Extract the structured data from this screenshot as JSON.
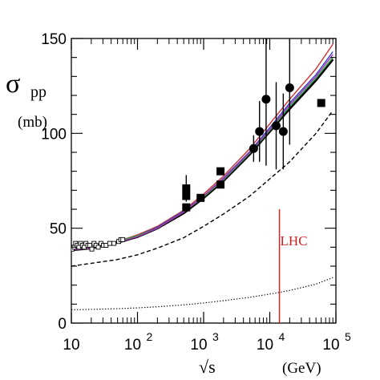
{
  "chart_data": {
    "type": "line",
    "title": "",
    "ylabel": {
      "symbol": "σ",
      "subscript": "pp",
      "unit": "(mb)"
    },
    "xlabel": {
      "symbol": "√s",
      "unit": "(GeV)"
    },
    "xscale": "log",
    "xlim": [
      10,
      100000
    ],
    "ylim": [
      0,
      150
    ],
    "x_ticks": [
      {
        "value": 10,
        "base": "10",
        "exp": ""
      },
      {
        "value": 100,
        "base": "10",
        "exp": "2"
      },
      {
        "value": 1000,
        "base": "10",
        "exp": "3"
      },
      {
        "value": 10000,
        "base": "10",
        "exp": "4"
      },
      {
        "value": 100000,
        "base": "10",
        "exp": "5"
      }
    ],
    "y_ticks": [
      0,
      50,
      100,
      150
    ],
    "grid": false,
    "annotations": [
      {
        "text": "LHC",
        "x": 14000,
        "y_from": 0,
        "y_to": 60,
        "color": "#cc2222"
      }
    ],
    "series": [
      {
        "style": "thick-solid",
        "color": "#000000",
        "x": [
          10,
          20,
          50,
          100,
          200,
          500,
          1000,
          2000,
          5000,
          10000,
          20000,
          50000,
          90000
        ],
        "y": [
          38.5,
          39.5,
          42.5,
          45.5,
          50,
          58,
          66,
          75,
          89,
          101,
          113,
          128,
          139
        ]
      },
      {
        "style": "solid",
        "color": "#cc3333",
        "x": [
          10,
          20,
          50,
          100,
          200,
          500,
          1000,
          2000,
          5000,
          10000,
          20000,
          50000,
          90000
        ],
        "y": [
          38.5,
          39.5,
          43,
          46.5,
          51,
          59.5,
          68,
          77.5,
          92,
          105,
          118,
          134,
          147
        ]
      },
      {
        "style": "solid",
        "color": "#3344cc",
        "x": [
          10,
          20,
          50,
          100,
          200,
          500,
          1000,
          2000,
          5000,
          10000,
          20000,
          50000,
          90000
        ],
        "y": [
          38.5,
          39.5,
          43,
          46,
          50.5,
          59,
          67,
          76.5,
          90.5,
          103,
          116,
          131,
          143
        ]
      },
      {
        "style": "solid",
        "color": "#22aa44",
        "x": [
          10,
          20,
          50,
          100,
          200,
          500,
          1000,
          2000,
          5000,
          10000,
          20000,
          50000,
          90000
        ],
        "y": [
          39,
          40,
          43,
          46,
          50,
          58.5,
          66.5,
          75.5,
          89.5,
          101.5,
          114,
          129,
          140
        ]
      },
      {
        "style": "solid",
        "color": "#aa33aa",
        "x": [
          10,
          20,
          50,
          100,
          200,
          500,
          1000,
          2000,
          5000,
          10000,
          20000,
          50000,
          90000
        ],
        "y": [
          38.5,
          39.5,
          42.5,
          45.5,
          50,
          58.5,
          67,
          76,
          90,
          102,
          115,
          130,
          141.5
        ]
      },
      {
        "style": "dashed",
        "color": "#000000",
        "x": [
          10,
          20,
          50,
          100,
          200,
          500,
          1000,
          2000,
          5000,
          10000,
          20000,
          50000,
          90000
        ],
        "y": [
          30,
          31.5,
          33.5,
          36,
          39.5,
          45,
          51,
          57.5,
          67,
          76,
          85,
          100,
          112
        ]
      },
      {
        "style": "dotted",
        "color": "#000000",
        "x": [
          10,
          20,
          50,
          100,
          200,
          500,
          1000,
          2000,
          5000,
          10000,
          20000,
          50000,
          90000
        ],
        "y": [
          7,
          7.2,
          7.6,
          8,
          8.6,
          9.6,
          10.6,
          11.8,
          13.6,
          15.3,
          17.2,
          20.5,
          24
        ]
      }
    ],
    "data_points": [
      {
        "marker": "open-square",
        "points": [
          [
            10.3,
            39
          ],
          [
            11,
            40
          ],
          [
            11.6,
            42
          ],
          [
            12.3,
            41
          ],
          [
            13,
            40
          ],
          [
            13.8,
            42
          ],
          [
            14.7,
            41
          ],
          [
            15.6,
            40
          ],
          [
            16.6,
            42
          ],
          [
            17.8,
            41
          ],
          [
            19,
            41
          ],
          [
            20.4,
            39
          ],
          [
            22,
            42
          ],
          [
            23.6,
            41
          ],
          [
            25.5,
            40
          ],
          [
            28,
            42
          ],
          [
            30.6,
            41
          ],
          [
            33.5,
            41
          ],
          [
            38,
            42
          ],
          [
            44,
            42
          ],
          [
            52,
            43
          ],
          [
            56,
            44
          ],
          [
            60,
            44
          ]
        ]
      },
      {
        "marker": "filled-circle",
        "points": [
          {
            "x": 5700,
            "y": 92,
            "err": 7
          },
          {
            "x": 7000,
            "y": 101,
            "err": 16
          },
          {
            "x": 8800,
            "y": 118,
            "err": 35
          },
          {
            "x": 12500,
            "y": 104,
            "err": 23
          },
          {
            "x": 16000,
            "y": 101,
            "err": 20
          },
          {
            "x": 20000,
            "y": 124,
            "err": 30
          }
        ]
      },
      {
        "marker": "filled-square",
        "points": [
          {
            "x": 546,
            "y": 61,
            "err": 0
          },
          {
            "x": 546,
            "y": 67,
            "err": 0
          },
          {
            "x": 546,
            "y": 71,
            "err": 7
          },
          {
            "x": 900,
            "y": 66,
            "err": 0
          },
          {
            "x": 1800,
            "y": 80,
            "err": 0
          },
          {
            "x": 1800,
            "y": 73,
            "err": 0
          },
          {
            "x": 60000,
            "y": 116,
            "err": 0
          }
        ]
      }
    ]
  }
}
